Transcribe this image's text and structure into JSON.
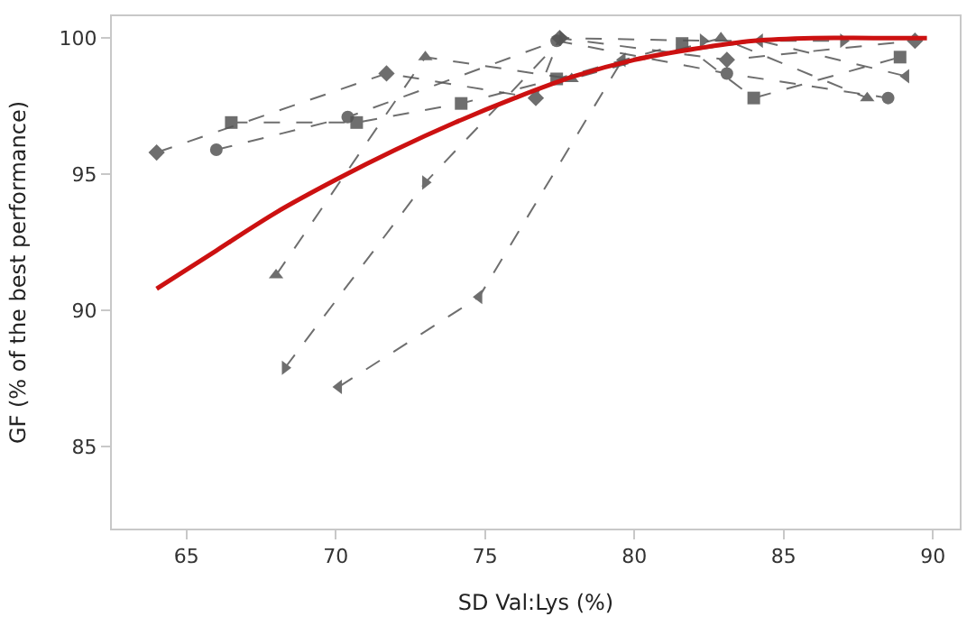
{
  "chart_data": {
    "type": "line",
    "xlabel": "SD Val:Lys (%)",
    "ylabel": "GF (% of the best performance)",
    "xlim": [
      62.5,
      90.9
    ],
    "ylim": [
      82.0,
      100.8
    ],
    "xticks": [
      65,
      70,
      75,
      80,
      85,
      90
    ],
    "yticks": [
      85,
      90,
      95,
      100
    ],
    "series": [
      {
        "color": "#555555",
        "marker": "diamond",
        "line_style": "dashed",
        "x": [
          64.0,
          71.7,
          76.7,
          77.5,
          83.1,
          89.4
        ],
        "values": [
          95.8,
          98.7,
          97.8,
          100.0,
          99.2,
          99.9
        ]
      },
      {
        "color": "#555555",
        "marker": "circle",
        "line_style": "dashed",
        "x": [
          66.0,
          70.4,
          77.4,
          83.1,
          88.5
        ],
        "values": [
          95.9,
          97.1,
          99.9,
          98.7,
          97.8
        ]
      },
      {
        "color": "#555555",
        "marker": "square",
        "line_style": "dashed",
        "x": [
          66.5,
          70.7,
          74.2,
          77.4,
          81.6,
          84.0,
          88.9
        ],
        "values": [
          96.9,
          96.9,
          97.6,
          98.5,
          99.8,
          97.8,
          99.3
        ]
      },
      {
        "color": "#555555",
        "marker": "triangle-up",
        "line_style": "dashed",
        "x": [
          68.0,
          73.0,
          77.9,
          82.9,
          87.8
        ],
        "values": [
          91.3,
          99.3,
          98.5,
          100.0,
          97.8
        ]
      },
      {
        "color": "#555555",
        "marker": "triangle-right",
        "line_style": "dashed",
        "x": [
          68.3,
          73.0,
          77.6,
          82.3,
          87.0
        ],
        "values": [
          87.9,
          94.7,
          100.0,
          99.9,
          99.9
        ]
      },
      {
        "color": "#555555",
        "marker": "triangle-left",
        "line_style": "dashed",
        "x": [
          70.1,
          74.8,
          79.6,
          84.2,
          89.1
        ],
        "values": [
          87.2,
          90.5,
          99.2,
          99.9,
          98.6
        ]
      },
      {
        "color": "#cc1111",
        "marker": "none",
        "line_style": "solid",
        "x": [
          64,
          66,
          68,
          70,
          72,
          74,
          76,
          78,
          80,
          82,
          84,
          86,
          88,
          89.8
        ],
        "values": [
          90.8,
          92.2,
          93.6,
          94.8,
          95.9,
          96.9,
          97.8,
          98.6,
          99.2,
          99.6,
          99.9,
          100,
          100,
          100
        ]
      }
    ]
  }
}
